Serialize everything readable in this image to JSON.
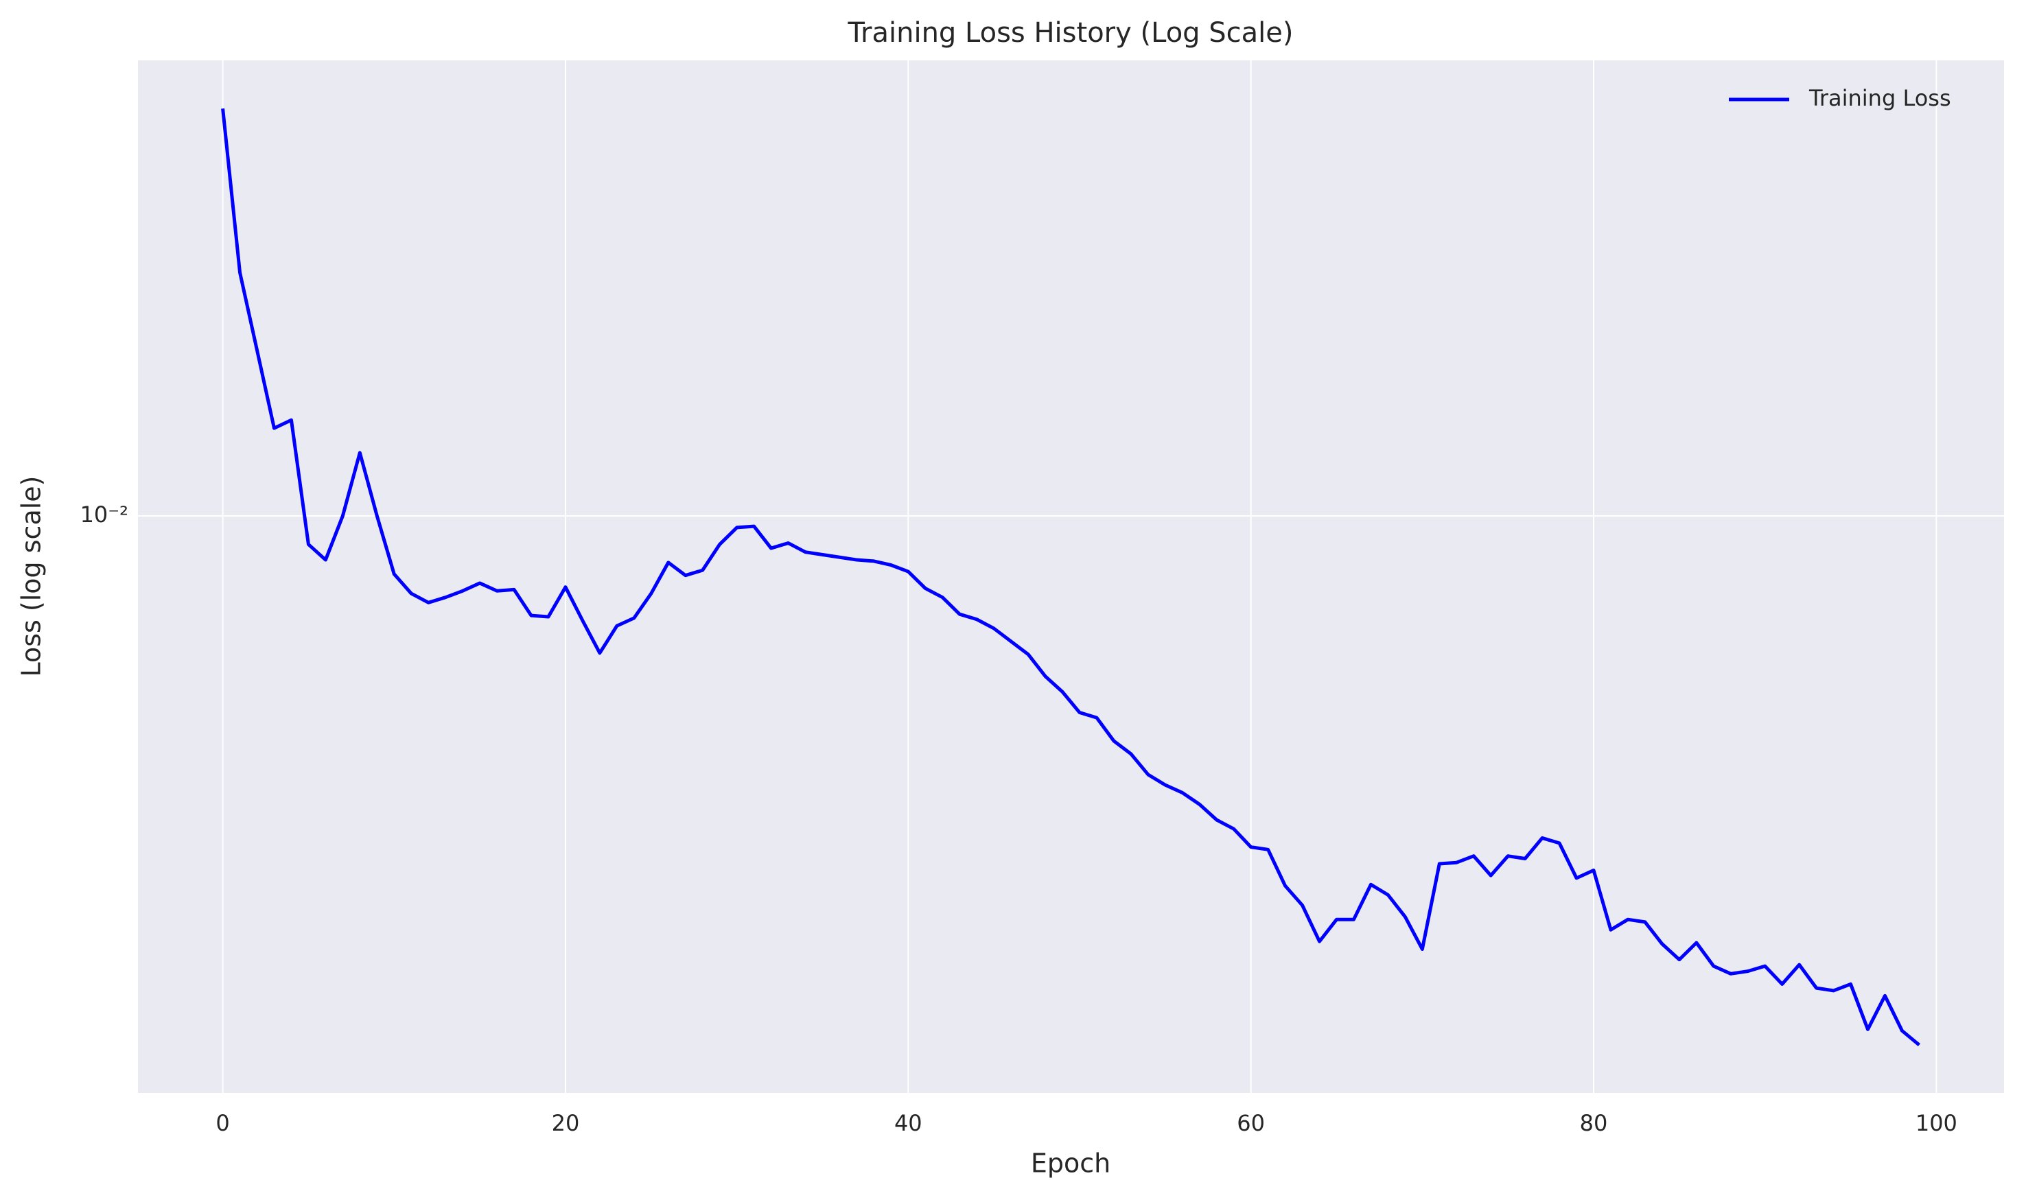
{
  "chart_data": {
    "type": "line",
    "title": "Training Loss History (Log Scale)",
    "x_label": "Epoch",
    "y_label": "Loss (log scale)",
    "x": [
      0,
      1,
      2,
      3,
      4,
      5,
      6,
      7,
      8,
      9,
      10,
      11,
      12,
      13,
      14,
      15,
      16,
      17,
      18,
      19,
      20,
      21,
      22,
      23,
      24,
      25,
      26,
      27,
      28,
      29,
      30,
      31,
      32,
      33,
      34,
      35,
      36,
      37,
      38,
      39,
      40,
      41,
      42,
      43,
      44,
      45,
      46,
      47,
      48,
      49,
      50,
      51,
      52,
      53,
      54,
      55,
      56,
      57,
      58,
      59,
      60,
      61,
      62,
      63,
      64,
      65,
      66,
      67,
      68,
      69,
      70,
      71,
      72,
      73,
      74,
      75,
      76,
      77,
      78,
      79,
      80,
      81,
      82,
      83,
      84,
      85,
      86,
      87,
      88,
      89,
      90,
      91,
      92,
      93,
      94,
      95,
      96,
      97,
      98,
      99
    ],
    "series": [
      {
        "name": "Training Loss",
        "color": "#0000ff",
        "values": [
          0.02065,
          0.01542,
          0.01343,
          0.01169,
          0.01186,
          0.009506,
          0.009247,
          0.01,
          0.01119,
          0.01,
          0.009016,
          0.00871,
          0.00857,
          0.00865,
          0.00875,
          0.008872,
          0.00875,
          0.00877,
          0.008375,
          0.008356,
          0.00881,
          0.008299,
          0.007834,
          0.008222,
          0.008337,
          0.00871,
          0.009204,
          0.008995,
          0.009078,
          0.009506,
          0.009795,
          0.009817,
          0.009441,
          0.009528,
          0.009376,
          0.009333,
          0.00929,
          0.009247,
          0.009226,
          0.009162,
          0.009057,
          0.00879,
          0.00865,
          0.008395,
          0.008318,
          0.008185,
          0.007998,
          0.007816,
          0.007516,
          0.007311,
          0.007047,
          0.006982,
          0.006699,
          0.006546,
          0.00631,
          0.006194,
          0.006109,
          0.005984,
          0.005821,
          0.005728,
          0.005546,
          0.005521,
          0.005176,
          0.005,
          0.004688,
          0.004875,
          0.004875,
          0.005188,
          0.005093,
          0.004898,
          0.004624,
          0.005383,
          0.005395,
          0.005458,
          0.005272,
          0.005458,
          0.005433,
          0.005636,
          0.005585,
          0.005248,
          0.005321,
          0.004786,
          0.004875,
          0.004853,
          0.004667,
          0.004539,
          0.004677,
          0.004487,
          0.004426,
          0.004446,
          0.004487,
          0.004345,
          0.004498,
          0.004315,
          0.004295,
          0.004345,
          0.004009,
          0.004256,
          0.003999,
          0.003899
        ]
      }
    ],
    "xlim": [
      -4.95,
      103.95
    ],
    "xticks": [
      0,
      20,
      40,
      60,
      80,
      100
    ],
    "ylim": [
      0.00358,
      0.0225
    ],
    "yticks": [
      {
        "value": 0.01,
        "label": "10⁻²"
      }
    ],
    "yscale": "log",
    "grid": true,
    "legend": "upper right"
  }
}
